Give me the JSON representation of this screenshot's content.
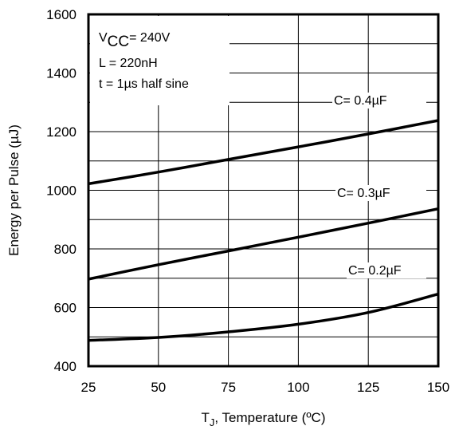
{
  "chart_data": {
    "type": "line",
    "xlabel_main": "T",
    "xlabel_sub": "J",
    "xlabel_rest": ", Temperature (ºC)",
    "ylabel": "Energy per Pulse (µJ)",
    "xlim": [
      25,
      150
    ],
    "ylim": [
      400,
      1600
    ],
    "xticks": [
      25,
      50,
      75,
      100,
      125,
      150
    ],
    "yticks": [
      400,
      600,
      800,
      1000,
      1200,
      1400,
      1600
    ],
    "xtick_labels": [
      "25",
      "50",
      "75",
      "100",
      "125",
      "150"
    ],
    "ytick_labels": [
      "400",
      "600",
      "800",
      "1000",
      "1200",
      "1400",
      "1600"
    ],
    "x_minor_gridlines": [
      25,
      50,
      75,
      100,
      125,
      150
    ],
    "y_minor_gridlines": [
      400,
      500,
      600,
      700,
      800,
      900,
      1000,
      1100,
      1200,
      1300,
      1400,
      1500,
      1600
    ],
    "grid": true,
    "annotation": {
      "vcc_main": "V",
      "vcc_sub": "CC",
      "vcc_rest": "= 240V",
      "line2": "L = 220nH",
      "line3": "t = 1µs half sine"
    },
    "series": [
      {
        "name": "C= 0.4µF",
        "x": [
          25,
          50,
          75,
          100,
          125,
          150
        ],
        "y": [
          1022,
          1062,
          1105,
          1148,
          1192,
          1238
        ]
      },
      {
        "name": "C= 0.3µF",
        "x": [
          25,
          50,
          75,
          100,
          125,
          150
        ],
        "y": [
          697,
          746,
          793,
          840,
          888,
          937
        ]
      },
      {
        "name": "C= 0.2µF",
        "x": [
          25,
          50,
          75,
          100,
          125,
          150
        ],
        "y": [
          488,
          498,
          517,
          543,
          583,
          646
        ]
      }
    ]
  }
}
